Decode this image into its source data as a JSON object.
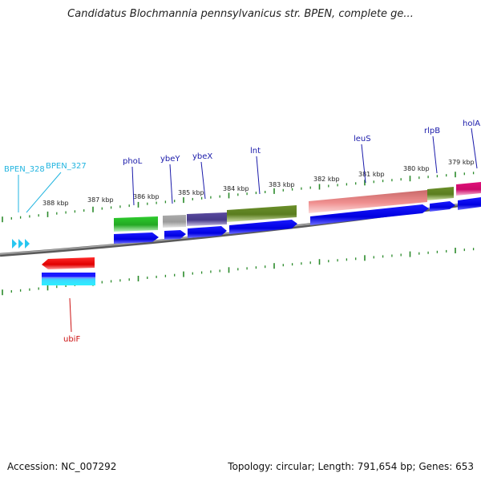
{
  "title": "Candidatus Blochmannia pennsylvanicus str. BPEN, complete ge...",
  "footer": {
    "accession": "Accession: NC_007292",
    "topology": "Topology: circular; Length: 791,654 bp; Genes: 653"
  },
  "kbp_ticks": [
    "388 kbp",
    "387 kbp",
    "386 kbp",
    "385 kbp",
    "384 kbp",
    "383 kbp",
    "382 kbp",
    "381 kbp",
    "380 kbp",
    "379 kbp"
  ],
  "gene_labels": [
    "BPEN_328",
    "BPEN_327",
    "phoL",
    "ybeY",
    "ybeX",
    "lnt",
    "leuS",
    "rlpB",
    "holA",
    "ubiF"
  ],
  "colors": {
    "forward_label": "#1a1aaa",
    "hypothetical_label": "#22b5e0",
    "reverse_label": "#cc1111",
    "cds_blue": "#0000ee",
    "tick_green": "#2a8a2a",
    "backbone": "#8a8a8a"
  }
}
